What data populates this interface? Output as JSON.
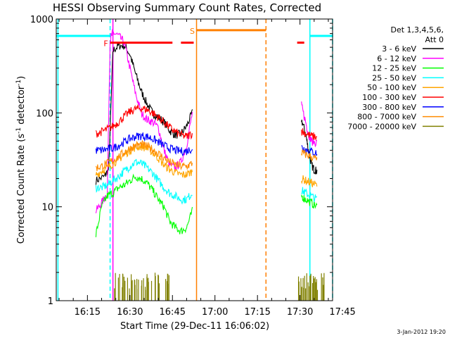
{
  "chart_data": {
    "type": "line",
    "title": "HESSI Observing Summary Count Rates, Corrected",
    "xlabel": "Start Time (29-Dec-11 16:06:02)",
    "ylabel_main": "Corrected Count Rate (s",
    "ylabel_sup1": "-1",
    "ylabel_mid": " detector",
    "ylabel_sup2": "-1",
    "ylabel_end": ")",
    "ylabel": "Corrected Count Rate (s-1 detector-1)",
    "yscale": "log",
    "ylim": [
      1,
      1000
    ],
    "xlim_minutes": [
      4.0,
      101.5
    ],
    "x_tick_minutes": [
      15,
      30,
      45,
      60,
      75,
      90,
      105
    ],
    "x_ticks": [
      "16:15",
      "16:30",
      "16:45",
      "17:00",
      "17:15",
      "17:30",
      "17:45"
    ],
    "y_ticks": [
      "1",
      "10",
      "100",
      "1000"
    ],
    "y_tick_values": [
      1,
      10,
      100,
      1000
    ],
    "legend_header": [
      "Det 1,3,4,5,6,",
      "Att 0"
    ],
    "legend_position": "right",
    "series": [
      {
        "name": "3 - 6 keV",
        "color": "#000000",
        "points": [
          [
            18,
            19
          ],
          [
            21,
            21
          ],
          [
            22.5,
            25
          ],
          [
            24,
            460
          ],
          [
            26,
            520
          ],
          [
            28,
            520
          ],
          [
            30,
            420
          ],
          [
            32,
            260
          ],
          [
            34,
            170
          ],
          [
            36,
            125
          ],
          [
            38,
            100
          ],
          [
            40,
            90
          ],
          [
            42,
            80
          ],
          [
            44,
            65
          ],
          [
            46,
            58
          ],
          [
            48,
            60
          ],
          [
            50,
            72
          ],
          [
            52,
            100
          ],
          [
            90.5,
            85
          ],
          [
            92,
            60
          ],
          [
            93,
            40
          ],
          [
            94,
            28
          ],
          [
            95,
            25
          ],
          [
            96,
            24
          ]
        ]
      },
      {
        "name": "6 - 12 keV",
        "color": "#ff00ff",
        "points": [
          [
            18,
            9
          ],
          [
            20,
            11
          ],
          [
            22,
            14
          ],
          [
            23,
            600
          ],
          [
            24,
            720
          ],
          [
            26,
            660
          ],
          [
            28,
            560
          ],
          [
            30,
            300
          ],
          [
            32,
            160
          ],
          [
            34,
            100
          ],
          [
            36,
            85
          ],
          [
            38,
            80
          ],
          [
            40,
            70
          ],
          [
            42,
            40
          ],
          [
            44,
            28
          ],
          [
            46,
            26
          ],
          [
            48,
            30
          ],
          [
            50,
            45
          ],
          [
            52,
            100
          ],
          [
            90.5,
            120
          ],
          [
            92,
            80
          ],
          [
            93,
            60
          ],
          [
            94,
            50
          ],
          [
            96,
            48
          ]
        ]
      },
      {
        "name": "12 - 25 keV",
        "color": "#00ff00",
        "points": [
          [
            18,
            5
          ],
          [
            20,
            10
          ],
          [
            22,
            13
          ],
          [
            24,
            14
          ],
          [
            26,
            16
          ],
          [
            28,
            17
          ],
          [
            30,
            19
          ],
          [
            32,
            21
          ],
          [
            34,
            20
          ],
          [
            36,
            18
          ],
          [
            38,
            15
          ],
          [
            40,
            12
          ],
          [
            42,
            10
          ],
          [
            44,
            7
          ],
          [
            46,
            6
          ],
          [
            48,
            5.5
          ],
          [
            50,
            6
          ],
          [
            52,
            9
          ],
          [
            90.5,
            13
          ],
          [
            92,
            12
          ],
          [
            94,
            11
          ],
          [
            96,
            10
          ]
        ]
      },
      {
        "name": "25 - 50 keV",
        "color": "#00ffff",
        "points": [
          [
            18,
            16
          ],
          [
            20,
            16
          ],
          [
            22,
            17
          ],
          [
            24,
            19
          ],
          [
            26,
            21
          ],
          [
            28,
            24
          ],
          [
            30,
            27
          ],
          [
            32,
            30
          ],
          [
            34,
            29
          ],
          [
            36,
            26
          ],
          [
            38,
            23
          ],
          [
            40,
            19
          ],
          [
            42,
            16
          ],
          [
            44,
            14
          ],
          [
            46,
            13
          ],
          [
            48,
            12
          ],
          [
            50,
            12
          ],
          [
            52,
            14
          ],
          [
            90.5,
            15
          ],
          [
            92,
            14
          ],
          [
            94,
            13
          ],
          [
            96,
            12
          ]
        ]
      },
      {
        "name": "50 - 100 keV",
        "color": "#ffa500",
        "points": [
          [
            18,
            22
          ],
          [
            20,
            24
          ],
          [
            22,
            26
          ],
          [
            24,
            29
          ],
          [
            26,
            32
          ],
          [
            28,
            36
          ],
          [
            30,
            40
          ],
          [
            32,
            43
          ],
          [
            34,
            44
          ],
          [
            36,
            42
          ],
          [
            38,
            38
          ],
          [
            40,
            33
          ],
          [
            42,
            28
          ],
          [
            44,
            25
          ],
          [
            46,
            23
          ],
          [
            48,
            22
          ],
          [
            50,
            22
          ],
          [
            52,
            24
          ],
          [
            90.5,
            20
          ],
          [
            92,
            19
          ],
          [
            94,
            18
          ],
          [
            96,
            17
          ]
        ]
      },
      {
        "name": "100 - 300 keV",
        "color": "#ff0000",
        "points": [
          [
            18,
            60
          ],
          [
            20,
            63
          ],
          [
            22,
            67
          ],
          [
            24,
            72
          ],
          [
            26,
            80
          ],
          [
            28,
            92
          ],
          [
            30,
            103
          ],
          [
            32,
            110
          ],
          [
            34,
            112
          ],
          [
            36,
            108
          ],
          [
            38,
            100
          ],
          [
            40,
            90
          ],
          [
            42,
            80
          ],
          [
            44,
            70
          ],
          [
            46,
            63
          ],
          [
            48,
            58
          ],
          [
            50,
            56
          ],
          [
            52,
            60
          ],
          [
            90.5,
            65
          ],
          [
            92,
            60
          ],
          [
            94,
            57
          ],
          [
            96,
            55
          ]
        ]
      },
      {
        "name": "300 - 800 keV",
        "color": "#0000ff",
        "points": [
          [
            18,
            40
          ],
          [
            20,
            40
          ],
          [
            22,
            41
          ],
          [
            24,
            42
          ],
          [
            26,
            45
          ],
          [
            28,
            49
          ],
          [
            30,
            53
          ],
          [
            32,
            56
          ],
          [
            34,
            57
          ],
          [
            36,
            56
          ],
          [
            38,
            53
          ],
          [
            40,
            49
          ],
          [
            42,
            45
          ],
          [
            44,
            42
          ],
          [
            46,
            40
          ],
          [
            48,
            39
          ],
          [
            50,
            39
          ],
          [
            52,
            42
          ],
          [
            90.5,
            43
          ],
          [
            92,
            41
          ],
          [
            94,
            39
          ],
          [
            96,
            37
          ]
        ]
      },
      {
        "name": "800 - 7000 keV",
        "color": "#ff8c00",
        "points": [
          [
            18,
            26
          ],
          [
            20,
            27
          ],
          [
            22,
            29
          ],
          [
            24,
            31
          ],
          [
            26,
            34
          ],
          [
            28,
            38
          ],
          [
            30,
            42
          ],
          [
            32,
            45
          ],
          [
            34,
            46
          ],
          [
            36,
            44
          ],
          [
            38,
            41
          ],
          [
            40,
            37
          ],
          [
            42,
            33
          ],
          [
            44,
            30
          ],
          [
            46,
            28
          ],
          [
            48,
            27
          ],
          [
            50,
            27
          ],
          [
            52,
            29
          ],
          [
            90.5,
            38
          ],
          [
            92,
            36
          ],
          [
            94,
            34
          ],
          [
            96,
            32
          ]
        ]
      },
      {
        "name": "7000 - 20000 keV",
        "color": "#808000",
        "style": "bursts",
        "points": [
          [
            26,
            2
          ],
          [
            30,
            2
          ],
          [
            34,
            2
          ],
          [
            38,
            2
          ],
          [
            42,
            2
          ],
          [
            91,
            2
          ],
          [
            94,
            2
          ],
          [
            97,
            2
          ]
        ]
      }
    ],
    "bar_rows": [
      {
        "label": "F",
        "color": "#ff0000",
        "y": 560,
        "label_x": 21.5,
        "segments": [
          [
            23,
            45
          ],
          [
            48,
            52.5
          ],
          [
            89,
            91.5
          ]
        ]
      },
      {
        "label": "S",
        "color": "#ff7f00",
        "y": 760,
        "label_x": 52,
        "segments": [
          [
            53.5,
            78
          ]
        ]
      }
    ],
    "night_line": {
      "color": "#00ffff",
      "y": 660,
      "segments": [
        [
          4,
          23
        ],
        [
          93.5,
          101.5
        ]
      ]
    },
    "vlines": [
      {
        "x": 4.6,
        "color": "#00ffff",
        "dash": false
      },
      {
        "x": 23,
        "color": "#00ffff",
        "dash": true
      },
      {
        "x": 24,
        "color": "#ff00ff",
        "dash": false
      },
      {
        "x": 53.5,
        "color": "#ff7f00",
        "dash": false
      },
      {
        "x": 78,
        "color": "#ff7f00",
        "dash": true
      },
      {
        "x": 93.5,
        "color": "#00ffff",
        "dash": false
      },
      {
        "x": 101.5,
        "color": "#00ffff",
        "dash": true
      }
    ]
  },
  "footer_date": "3-Jan-2012 19:20"
}
